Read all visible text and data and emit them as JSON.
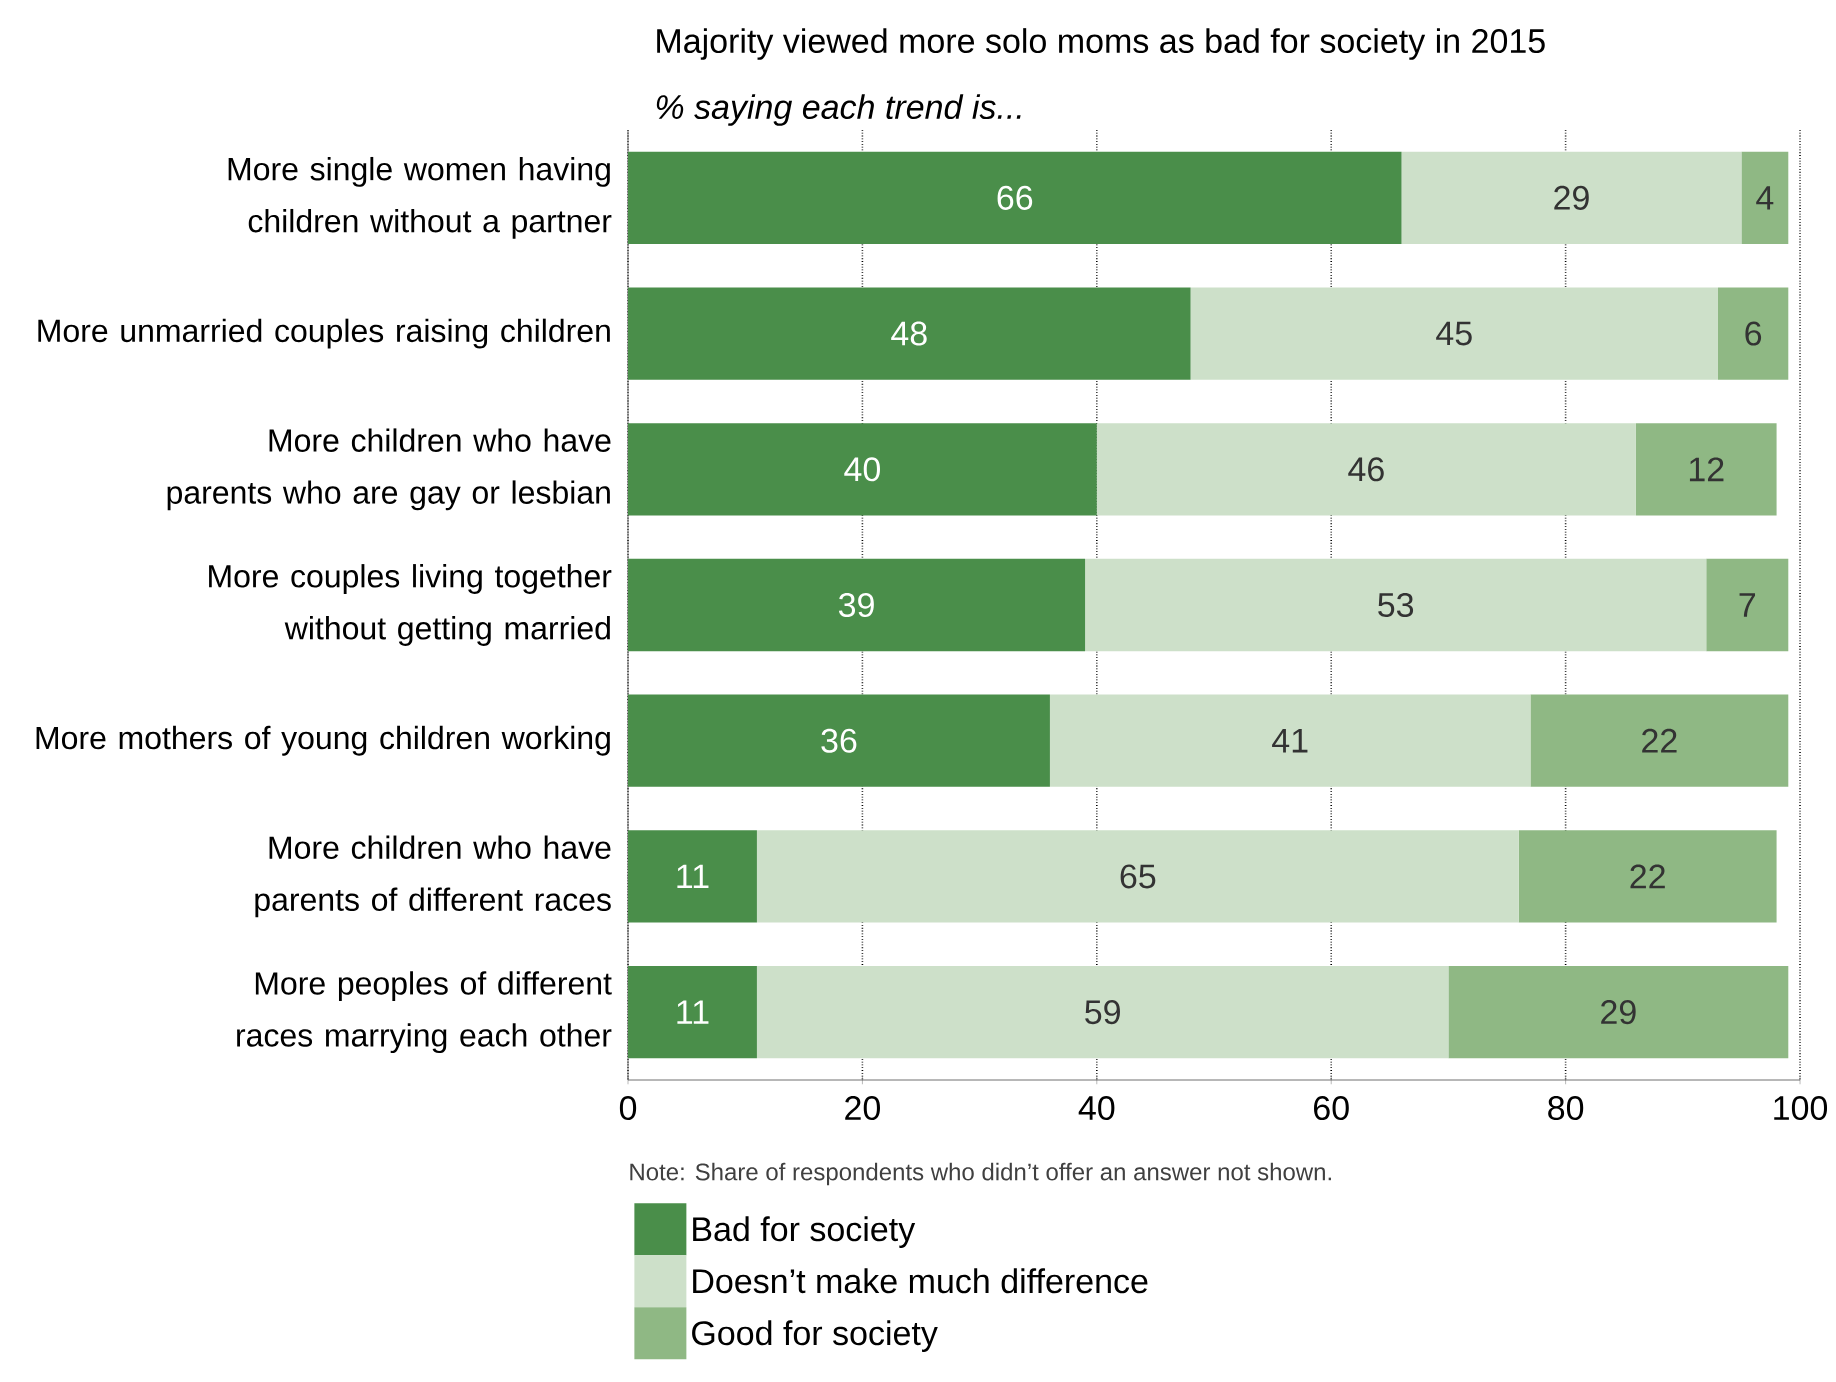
{
  "chart_data": {
    "type": "bar",
    "orientation": "horizontal",
    "stacked": true,
    "title": "Majority viewed more solo moms as bad for society in 2015",
    "subtitle": "% saying each trend is...",
    "categories": [
      "More single women having children without a partner",
      "More unmarried couples raising children",
      "More children who have parents who are gay or lesbian",
      "More couples living together without getting married",
      "More mothers of young children working",
      "More children who have parents of different races",
      "More peoples of different races marrying each other"
    ],
    "series": [
      {
        "name": "Bad for society",
        "color": "#4a8e4a",
        "values": [
          66,
          48,
          40,
          39,
          36,
          11,
          11
        ]
      },
      {
        "name": "Doesn’t make much difference",
        "color": "#cde0c9",
        "values": [
          29,
          45,
          46,
          53,
          41,
          65,
          59
        ]
      },
      {
        "name": "Good for society",
        "color": "#8fb884",
        "values": [
          4,
          6,
          12,
          7,
          22,
          22,
          29
        ]
      }
    ],
    "xlim": [
      0,
      100
    ],
    "xticks": [
      0,
      20,
      40,
      60,
      80,
      100
    ],
    "grid": "x",
    "data_labels": true,
    "legend": "bottom",
    "annotations": [
      "Note: Share of respondents who didn’t offer an answer not shown."
    ]
  }
}
